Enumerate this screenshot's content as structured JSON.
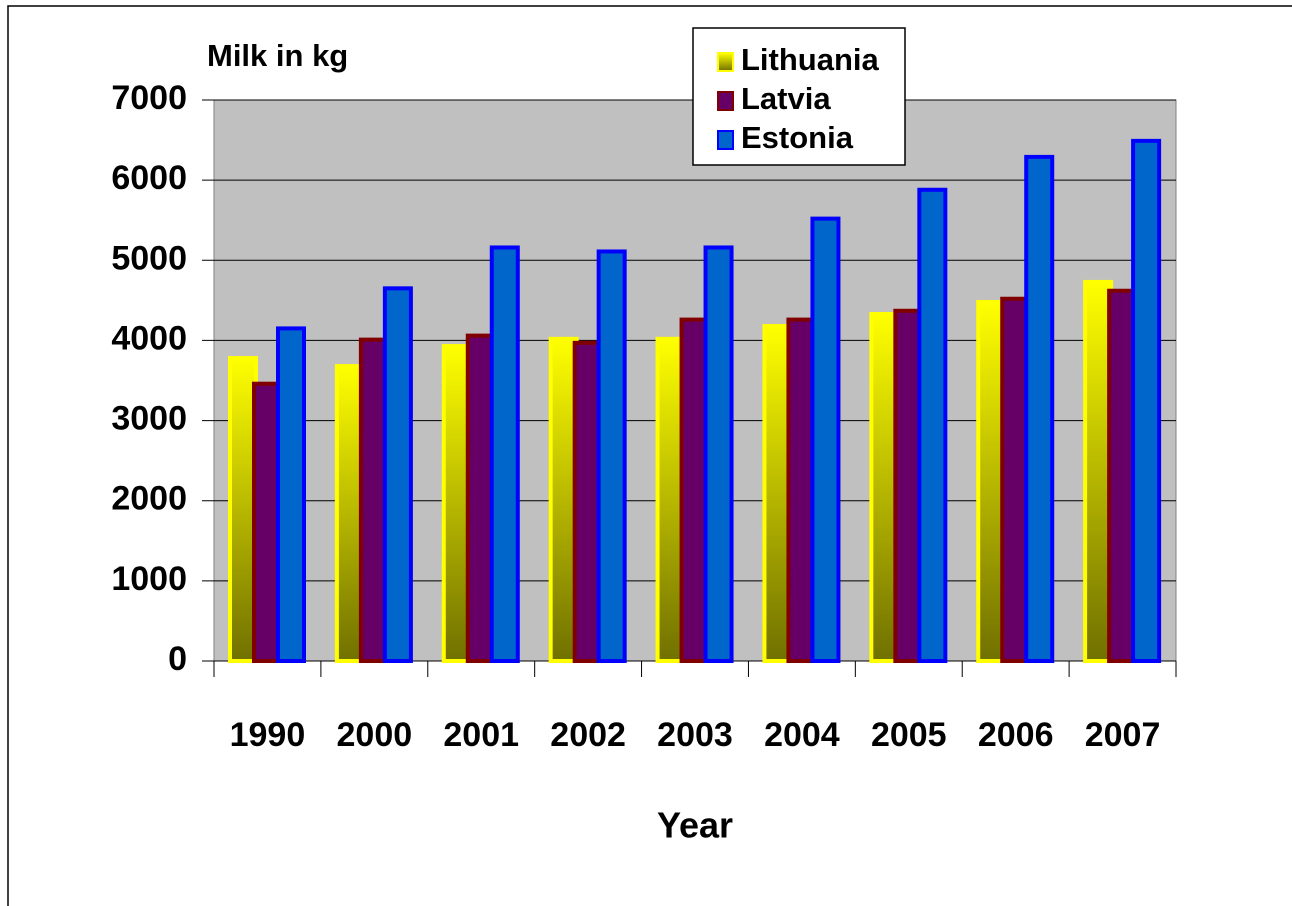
{
  "chart_data": {
    "type": "bar",
    "title": "Milk in kg",
    "x_label": "Year",
    "categories": [
      "1990",
      "2000",
      "2001",
      "2002",
      "2003",
      "2004",
      "2005",
      "2006",
      "2007"
    ],
    "series": [
      {
        "name": "Lithuania",
        "color": "#ffff00",
        "values": [
          3780,
          3680,
          3930,
          4020,
          4020,
          4180,
          4330,
          4480,
          4730
        ]
      },
      {
        "name": "Latvia",
        "color": "#660066",
        "values": [
          3460,
          4010,
          4060,
          3970,
          4260,
          4260,
          4370,
          4520,
          4620
        ]
      },
      {
        "name": "Estonia",
        "color": "#0066cc",
        "values": [
          4150,
          4650,
          5160,
          5110,
          5160,
          5520,
          5880,
          6290,
          6490
        ]
      }
    ],
    "ylim": [
      0,
      7000
    ],
    "yticks": [
      0,
      1000,
      2000,
      3000,
      4000,
      5000,
      6000,
      7000
    ],
    "grid": true
  }
}
